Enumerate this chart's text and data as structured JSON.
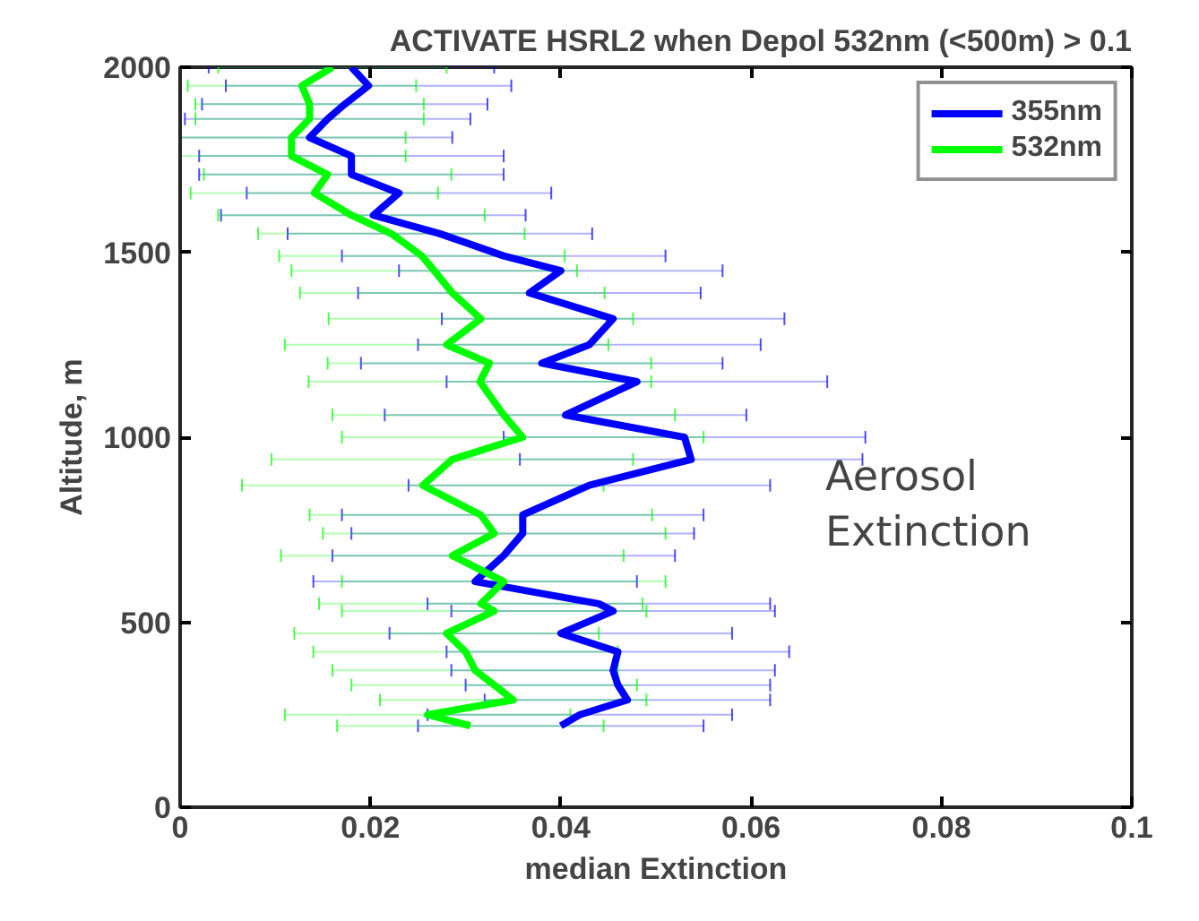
{
  "chart_data": {
    "type": "line",
    "title": "ACTIVATE HSRL2 when Depol 532nm (<500m) > 0.1",
    "xlabel": "median Extinction",
    "ylabel": "Altitude, m",
    "xlim": [
      0,
      0.1
    ],
    "xticks": [
      0,
      0.02,
      0.04,
      0.06,
      0.08,
      0.1
    ],
    "ylim": [
      0,
      2000
    ],
    "yticks": [
      0,
      500,
      1000,
      1500,
      2000
    ],
    "grid": false,
    "legend": "top right",
    "marker": "none",
    "line_style": "solid",
    "annotations": [
      "Aerosol\nExtinction"
    ],
    "series": [
      {
        "name": "355nm",
        "color": "#0000ff",
        "x": [
          0.04,
          0.042,
          0.047,
          0.046,
          0.0455,
          0.046,
          0.04,
          0.0455,
          0.044,
          0.031,
          0.034,
          0.036,
          0.036,
          0.043,
          0.0537,
          0.053,
          0.0405,
          0.048,
          0.038,
          0.043,
          0.0455,
          0.0367,
          0.04,
          0.034,
          0.0273,
          0.0203,
          0.023,
          0.018,
          0.018,
          0.0136,
          0.0155,
          0.0173,
          0.0198,
          0.018
        ],
        "values": [
          220,
          250,
          290,
          330,
          370,
          420,
          470,
          530,
          550,
          610,
          680,
          740,
          790,
          870,
          940,
          1000,
          1060,
          1150,
          1200,
          1250,
          1320,
          1390,
          1450,
          1490,
          1550,
          1600,
          1660,
          1710,
          1760,
          1810,
          1860,
          1900,
          1950,
          2000
        ],
        "xerrors": [
          0.015,
          0.016,
          0.015,
          0.016,
          0.017,
          0.018,
          0.018,
          0.017,
          0.018,
          0.017,
          0.018,
          0.018,
          0.019,
          0.019,
          0.018,
          0.019,
          0.019,
          0.02,
          0.019,
          0.018,
          0.018,
          0.018,
          0.017,
          0.017,
          0.016,
          0.016,
          0.016,
          0.016,
          0.016,
          0.015,
          0.015,
          0.015,
          0.015,
          0.015
        ]
      },
      {
        "name": "532nm",
        "color": "#00ff00",
        "x": [
          0.0305,
          0.026,
          0.035,
          0.033,
          0.031,
          0.03,
          0.028,
          0.033,
          0.0316,
          0.034,
          0.0286,
          0.033,
          0.0316,
          0.0255,
          0.0286,
          0.036,
          0.034,
          0.0315,
          0.0325,
          0.028,
          0.0316,
          0.0286,
          0.0267,
          0.0254,
          0.0222,
          0.018,
          0.0141,
          0.0155,
          0.0117,
          0.0117,
          0.0136,
          0.0136,
          0.0128,
          0.016
        ],
        "values": [
          220,
          250,
          290,
          330,
          370,
          420,
          470,
          530,
          550,
          610,
          680,
          740,
          790,
          870,
          940,
          1000,
          1060,
          1150,
          1200,
          1250,
          1320,
          1390,
          1450,
          1490,
          1550,
          1600,
          1660,
          1710,
          1760,
          1810,
          1860,
          1900,
          1950,
          2000
        ],
        "xerrors": [
          0.014,
          0.015,
          0.014,
          0.015,
          0.015,
          0.016,
          0.016,
          0.016,
          0.017,
          0.017,
          0.018,
          0.018,
          0.018,
          0.019,
          0.019,
          0.019,
          0.018,
          0.018,
          0.017,
          0.017,
          0.016,
          0.016,
          0.015,
          0.015,
          0.014,
          0.014,
          0.013,
          0.013,
          0.012,
          0.012,
          0.012,
          0.012,
          0.012,
          0.012
        ]
      }
    ]
  }
}
